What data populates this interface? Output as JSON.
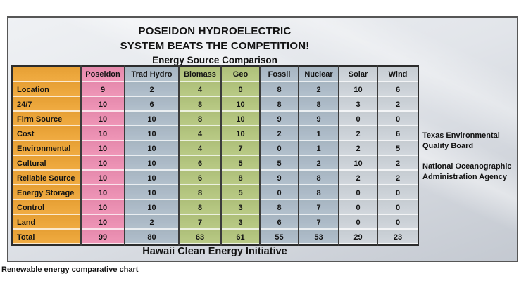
{
  "title": {
    "line1": "POSEIDON HYDROELECTRIC",
    "line2": "SYSTEM BEATS THE COMPETITION!",
    "line3": "Energy Source Comparison"
  },
  "footer": {
    "label": "Hawaii Clean Energy Initiative"
  },
  "caption": "Renewable energy comparative chart",
  "annotations": [
    "Texas Environmental Quality Board",
    "National Oceanographic Administration Agency"
  ],
  "colors": {
    "row_label_bg": "#efa636",
    "column_bg": {
      "Poseidon": "#ee8fb3",
      "Trad Hydro": "#adbcc9",
      "Biomass": "#b5c77e",
      "Geo": "#b5c77e",
      "Fossil": "#adbcc9",
      "Nuclear": "#adbcc9",
      "Solar": "#ced4da",
      "Wind": "#ced4da"
    },
    "grid_dark": "#3b3b3b",
    "panel_border": "#565656"
  },
  "chart_data": {
    "type": "table",
    "title": "Energy Source Comparison",
    "columns": [
      "Poseidon",
      "Trad Hydro",
      "Biomass",
      "Geo",
      "Fossil",
      "Nuclear",
      "Solar",
      "Wind"
    ],
    "row_labels": [
      "Location",
      "24/7",
      "Firm Source",
      "Cost",
      "Environmental",
      "Cultural",
      "Reliable Source",
      "Energy Storage",
      "Control",
      "Land",
      "Total"
    ],
    "values": [
      [
        9,
        2,
        4,
        0,
        8,
        2,
        10,
        6
      ],
      [
        10,
        6,
        8,
        10,
        8,
        8,
        3,
        2
      ],
      [
        10,
        10,
        8,
        10,
        9,
        9,
        0,
        0
      ],
      [
        10,
        10,
        4,
        10,
        2,
        1,
        2,
        6
      ],
      [
        10,
        10,
        4,
        7,
        0,
        1,
        2,
        5
      ],
      [
        10,
        10,
        6,
        5,
        5,
        2,
        10,
        2
      ],
      [
        10,
        10,
        6,
        8,
        9,
        8,
        2,
        2
      ],
      [
        10,
        10,
        8,
        5,
        0,
        8,
        0,
        0
      ],
      [
        10,
        10,
        8,
        3,
        8,
        7,
        0,
        0
      ],
      [
        10,
        2,
        7,
        3,
        6,
        7,
        0,
        0
      ],
      [
        99,
        80,
        63,
        61,
        55,
        53,
        29,
        23
      ]
    ]
  }
}
